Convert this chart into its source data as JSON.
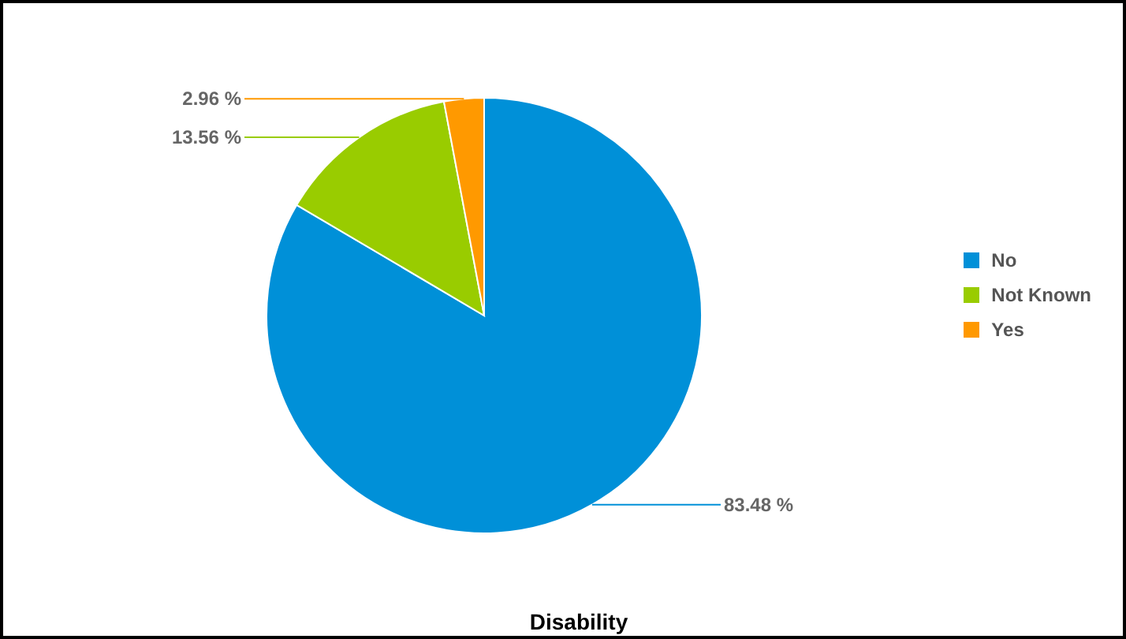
{
  "chart_data": {
    "type": "pie",
    "title": "Disability",
    "categories": [
      "No",
      "Not Known",
      "Yes"
    ],
    "values": [
      83.48,
      13.56,
      2.96
    ],
    "value_labels": [
      "83.48 %",
      "13.56 %",
      "2.96 %"
    ],
    "colors": [
      "#0090d8",
      "#99cc00",
      "#ff9900"
    ],
    "legend": "right"
  }
}
